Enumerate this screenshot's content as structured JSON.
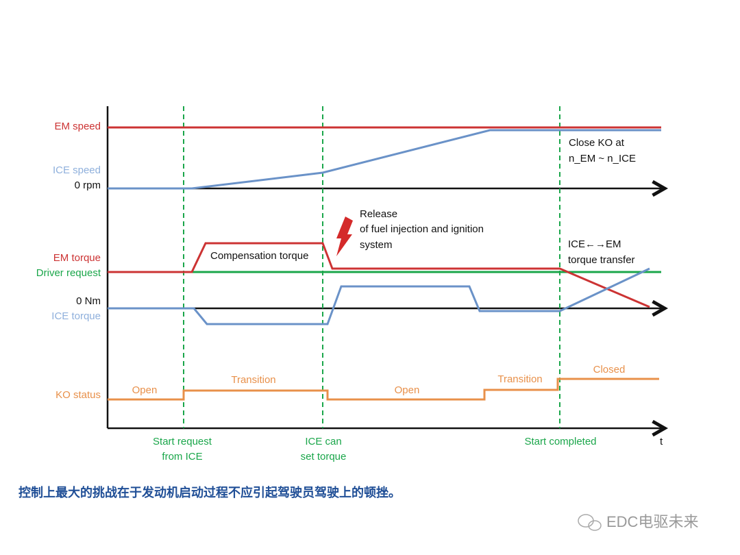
{
  "signals": {
    "em_speed": "EM speed",
    "ice_speed": "ICE speed",
    "zero_rpm": "0  rpm",
    "em_torque": "EM torque",
    "driver_request": "Driver request",
    "zero_nm": "0 Nm",
    "ice_torque": "ICE torque",
    "ko_status": "KO status"
  },
  "phases": [
    "Open",
    "Transition",
    "Open",
    "Transition",
    "Closed"
  ],
  "events": [
    [
      "Start request",
      "from ICE"
    ],
    [
      "ICE can",
      "set torque"
    ],
    [
      "Start completed"
    ]
  ],
  "time_axis": "t",
  "annotations": {
    "compensation": "Compensation torque",
    "release": [
      "Release",
      "of fuel injection and ignition",
      "system"
    ],
    "close_ko": [
      "Close KO at",
      "n_EM ~ n_ICE"
    ],
    "transfer": [
      "ICE←→EM",
      "torque transfer"
    ]
  },
  "caption": "控制上最大的挑战在于发动机启动过程不应引起驾驶员驾驶上的顿挫。",
  "watermark": "EDC电驱未来"
}
